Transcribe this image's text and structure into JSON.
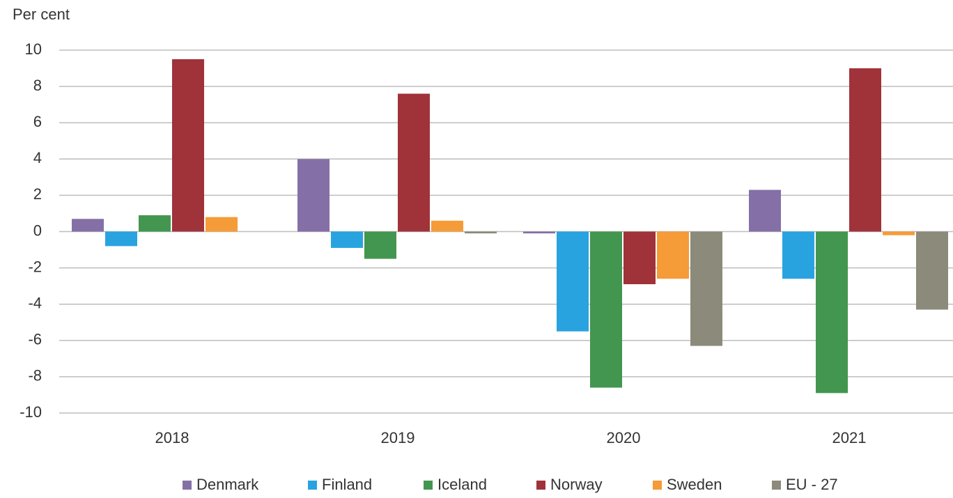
{
  "chart_data": {
    "type": "bar",
    "y_label": "Per cent",
    "categories": [
      "2018",
      "2019",
      "2020",
      "2021"
    ],
    "series": [
      {
        "name": "Denmark",
        "color": "#8470a6",
        "values": [
          0.7,
          4.0,
          -0.1,
          2.3
        ]
      },
      {
        "name": "Finland",
        "color": "#29a3e0",
        "values": [
          -0.8,
          -0.9,
          -5.5,
          -2.6
        ]
      },
      {
        "name": "Iceland",
        "color": "#43964f",
        "values": [
          0.9,
          -1.5,
          -8.6,
          -8.9
        ]
      },
      {
        "name": "Norway",
        "color": "#a0323a",
        "values": [
          9.5,
          7.6,
          -2.9,
          9.0
        ]
      },
      {
        "name": "Sweden",
        "color": "#f59b37",
        "values": [
          0.8,
          0.6,
          -2.6,
          -0.2
        ]
      },
      {
        "name": "EU - 27",
        "color": "#8c8a7a",
        "values": [
          null,
          -0.1,
          -6.3,
          -4.3
        ]
      }
    ],
    "ylim": [
      -10,
      10
    ],
    "yticks": [
      -10,
      -8,
      -6,
      -4,
      -2,
      0,
      2,
      4,
      6,
      8,
      10
    ],
    "grid": true,
    "legend": "bottom"
  }
}
